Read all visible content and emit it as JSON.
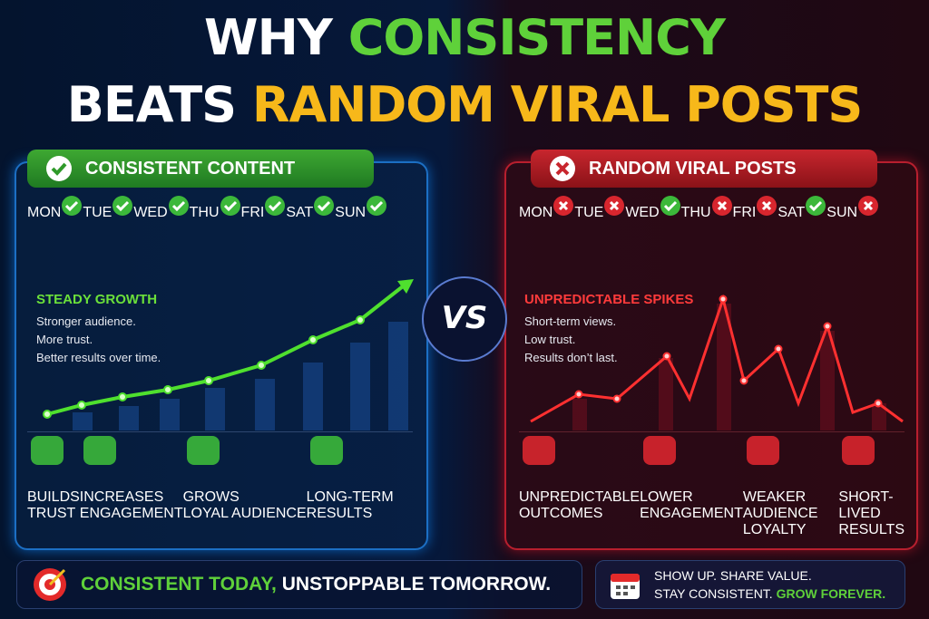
{
  "title": {
    "line1": {
      "white": "WHY",
      "accent": "CONSISTENCY"
    },
    "line2": {
      "white": "BEATS",
      "accent": "RANDOM VIRAL POSTS"
    }
  },
  "left": {
    "header": "CONSISTENT CONTENT",
    "days": [
      "MON",
      "TUE",
      "WED",
      "THU",
      "FRI",
      "SAT",
      "SUN"
    ],
    "heading": "STEADY GROWTH",
    "lines": [
      "Stronger audience.",
      "More trust.",
      "Better results over time."
    ],
    "benefits": [
      [
        "BUILDS",
        "TRUST"
      ],
      [
        "INCREASES",
        "ENGAGEMENT"
      ],
      [
        "GROWS",
        "LOYAL AUDIENCE"
      ],
      [
        "LONG-TERM",
        "RESULTS"
      ]
    ]
  },
  "vs": "VS",
  "right": {
    "header": "RANDOM VIRAL POSTS",
    "days": [
      "MON",
      "TUE",
      "WED",
      "THU",
      "FRI",
      "SAT",
      "SUN"
    ],
    "heading": "UNPREDICTABLE SPIKES",
    "lines": [
      "Short-term views.",
      "Low trust.",
      "Results don’t last."
    ],
    "benefits": [
      [
        "UNPREDICTABLE",
        "OUTCOMES"
      ],
      [
        "LOWER",
        "ENGAGEMENT"
      ],
      [
        "WEAKER AUDIENCE",
        "LOYALTY"
      ],
      [
        "SHORT-LIVED",
        "RESULTS"
      ]
    ]
  },
  "footer": {
    "left": {
      "green": "CONSISTENT TODAY,",
      "white": "UNSTOPPABLE TOMORROW."
    },
    "right": {
      "line1": "SHOW UP. SHARE VALUE.",
      "line2_white": "STAY CONSISTENT.",
      "line2_green": "GROW FOREVER."
    }
  }
}
